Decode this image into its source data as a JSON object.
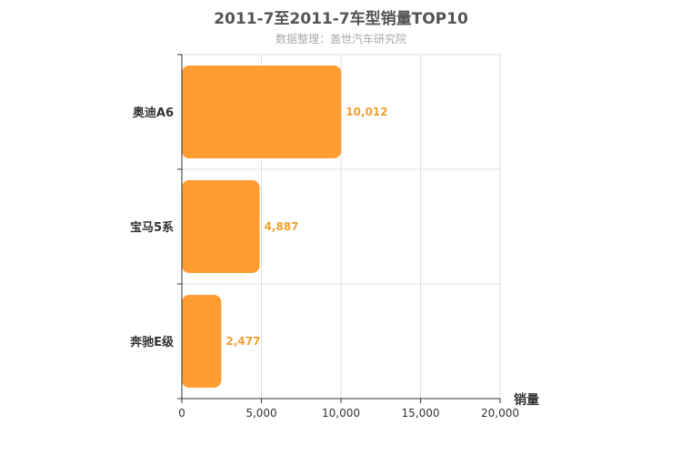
{
  "header": {
    "title": "2011-7至2011-7车型销量TOP10",
    "subtitle": "数据整理：盖世汽车研究院"
  },
  "chart_data": {
    "type": "bar",
    "orientation": "horizontal",
    "title": "2011-7至2011-7车型销量TOP10",
    "subtitle": "数据整理：盖世汽车研究院",
    "categories": [
      "奥迪A6",
      "宝马5系",
      "奔驰E级"
    ],
    "values": [
      10012,
      4887,
      2477
    ],
    "value_labels": [
      "10,012",
      "4,887",
      "2,477"
    ],
    "xlabel": "销量",
    "ylabel": "",
    "xlim": [
      0,
      20000
    ],
    "x_ticks": [
      0,
      5000,
      10000,
      15000,
      20000
    ],
    "x_tick_labels": [
      "0",
      "5,000",
      "10,000",
      "15,000",
      "20,000"
    ],
    "grid": true,
    "colors": {
      "bar": "#ff9d33",
      "data_label": "#f0a030"
    }
  }
}
